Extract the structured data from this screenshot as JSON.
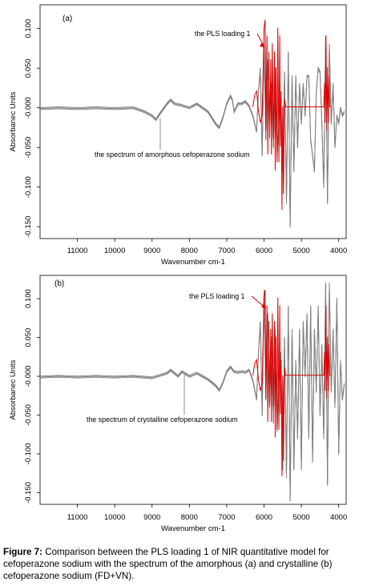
{
  "caption": {
    "label": "Figure 7:",
    "text": "Comparison between the PLS loading 1 of NIR quantitative model for cefoperazone sodium with the spectrum of the amorphous (a) and crystalline (b) cefoperazone sodium (FD+VN)."
  },
  "chart_data": [
    {
      "type": "line",
      "panel_label": "(a)",
      "xlabel": "Wavenumber cm-1",
      "ylabel": "Absorbanec Units",
      "x_reversed": true,
      "xlim": [
        12000,
        3800
      ],
      "ylim": [
        -0.165,
        0.13
      ],
      "x_ticks": [
        "11000",
        "10000",
        "9000",
        "8000",
        "7000",
        "6000",
        "5000",
        "4000"
      ],
      "y_ticks": [
        "0.100",
        "0.050",
        "-0.000",
        "-0.050",
        "-0.100",
        "-0.150"
      ],
      "annotations": [
        "the PLS loading 1",
        "the spectrum of amorphous cefoperazone sodium"
      ],
      "series": [
        {
          "name": "the spectrum of amorphous cefoperazone sodium",
          "color": "#7f7f7f",
          "x": [
            12000,
            11500,
            11000,
            10500,
            10000,
            9500,
            9200,
            9000,
            8900,
            8800,
            8600,
            8500,
            8400,
            8200,
            8000,
            7800,
            7500,
            7300,
            7200,
            7100,
            7000,
            6900,
            6850,
            6800,
            6700,
            6600,
            6500,
            6400,
            6300,
            6200,
            6150,
            6100,
            6050,
            6000,
            5950,
            5900,
            5850,
            5800,
            5750,
            5700,
            5650,
            5600,
            5550,
            5500,
            5450,
            5400,
            5350,
            5300,
            5250,
            5200,
            5150,
            5100,
            5050,
            5000,
            4950,
            4900,
            4850,
            4800,
            4750,
            4700,
            4650,
            4600,
            4550,
            4500,
            4450,
            4400,
            4350,
            4300,
            4250,
            4200,
            4150,
            4100,
            4050,
            4000,
            3950,
            3900,
            3850
          ],
          "values": [
            -0.001,
            0.0,
            -0.001,
            0.0,
            -0.001,
            0.0,
            -0.005,
            -0.01,
            -0.015,
            -0.008,
            0.005,
            0.01,
            0.005,
            0.003,
            0.0,
            0.005,
            -0.005,
            -0.02,
            -0.025,
            -0.012,
            0.005,
            0.015,
            0.01,
            -0.005,
            0.005,
            0.005,
            0.008,
            0.002,
            -0.01,
            -0.03,
            0.02,
            0.05,
            -0.06,
            0.08,
            -0.04,
            0.06,
            -0.02,
            0.03,
            -0.05,
            0.05,
            -0.06,
            -0.02,
            0.01,
            -0.08,
            0.045,
            -0.12,
            0.07,
            -0.15,
            0.04,
            -0.08,
            0.04,
            -0.05,
            0.03,
            -0.02,
            0.03,
            -0.01,
            0.04,
            0.04,
            -0.04,
            -0.06,
            -0.08,
            0.02,
            0.05,
            0.045,
            -0.02,
            -0.1,
            0.09,
            -0.12,
            0.08,
            -0.02,
            0.03,
            -0.05,
            -0.01,
            -0.02,
            0.0,
            -0.01,
            -0.005
          ]
        },
        {
          "name": "the PLS loading 1",
          "color": "#dd0000",
          "x": [
            6300,
            6250,
            6200,
            6150,
            6100,
            6050,
            6000,
            5970,
            5950,
            5920,
            5900,
            5870,
            5850,
            5820,
            5800,
            5780,
            5750,
            5720,
            5700,
            5680,
            5650,
            5630,
            5600,
            5580,
            5560,
            5540,
            5520,
            5500,
            5480,
            5450,
            5420,
            5400,
            5380,
            5350,
            5300,
            5200,
            5100,
            5000,
            4900,
            4800,
            4700,
            4600,
            4500,
            4450,
            4400,
            4380,
            4360,
            4340,
            4320,
            4300,
            4280,
            4260,
            4240,
            4220,
            4200
          ],
          "values": [
            0.0,
            0.015,
            0.02,
            -0.005,
            -0.02,
            -0.01,
            0.1,
            0.11,
            -0.03,
            0.09,
            -0.06,
            0.07,
            -0.04,
            0.06,
            -0.06,
            0.08,
            -0.04,
            0.07,
            -0.08,
            0.05,
            -0.07,
            0.1,
            -0.07,
            0.09,
            -0.05,
            0.02,
            -0.13,
            0.0,
            -0.11,
            0.01,
            0.0,
            0.0,
            0.0,
            0.0,
            0.0,
            0.0,
            0.0,
            0.0,
            0.0,
            0.0,
            0.0,
            0.0,
            0.0,
            0.0,
            0.0,
            0.03,
            -0.02,
            0.09,
            -0.03,
            0.05,
            -0.02,
            0.04,
            0.0,
            0.0,
            0.0
          ]
        }
      ]
    },
    {
      "type": "line",
      "panel_label": "(b)",
      "xlabel": "Wavenumber cm-1",
      "ylabel": "Absorbanec Units",
      "x_reversed": true,
      "xlim": [
        12000,
        3800
      ],
      "ylim": [
        -0.165,
        0.13
      ],
      "x_ticks": [
        "11000",
        "10000",
        "9000",
        "8000",
        "7000",
        "6000",
        "5000",
        "4000"
      ],
      "y_ticks": [
        "0.100",
        "0.050",
        "-0.000",
        "-0.050",
        "-0.100",
        "-0.150"
      ],
      "annotations": [
        "the PLS loading 1",
        "the spectrum of crystalline cefoperazone sodium"
      ],
      "series": [
        {
          "name": "the spectrum of crystalline cefoperazone sodium",
          "color": "#7f7f7f",
          "x": [
            12000,
            11500,
            11000,
            10500,
            10000,
            9500,
            9000,
            8600,
            8500,
            8400,
            8300,
            8200,
            8000,
            7800,
            7500,
            7300,
            7200,
            7100,
            7000,
            6900,
            6800,
            6700,
            6600,
            6500,
            6400,
            6300,
            6200,
            6150,
            6100,
            6050,
            6000,
            5950,
            5900,
            5850,
            5800,
            5750,
            5700,
            5650,
            5600,
            5550,
            5500,
            5450,
            5400,
            5350,
            5300,
            5250,
            5200,
            5150,
            5100,
            5050,
            5000,
            4950,
            4900,
            4850,
            4800,
            4750,
            4700,
            4650,
            4600,
            4550,
            4500,
            4450,
            4400,
            4350,
            4300,
            4250,
            4200,
            4150,
            4100,
            4050,
            4000,
            3950,
            3900,
            3850
          ],
          "values": [
            -0.001,
            0.0,
            -0.001,
            0.0,
            -0.001,
            0.0,
            -0.002,
            0.004,
            0.008,
            0.004,
            0.0,
            0.006,
            0.0,
            0.004,
            -0.004,
            -0.012,
            -0.018,
            -0.008,
            0.006,
            0.012,
            0.006,
            0.005,
            0.006,
            0.005,
            0.008,
            -0.005,
            -0.03,
            0.03,
            0.07,
            -0.05,
            0.11,
            -0.03,
            0.08,
            -0.04,
            0.05,
            -0.06,
            0.06,
            -0.07,
            -0.01,
            0.03,
            -0.12,
            0.05,
            -0.13,
            0.09,
            -0.16,
            0.06,
            -0.12,
            0.02,
            -0.08,
            0.06,
            -0.12,
            0.07,
            0.0,
            0.08,
            -0.08,
            0.09,
            -0.11,
            0.06,
            -0.02,
            0.09,
            -0.05,
            0.04,
            -0.08,
            0.12,
            -0.14,
            0.12,
            -0.02,
            0.06,
            -0.04,
            0.1,
            -0.1,
            0.02,
            -0.03,
            -0.01
          ]
        },
        {
          "name": "the PLS loading 1",
          "color": "#dd0000",
          "x": [
            6300,
            6250,
            6200,
            6150,
            6100,
            6050,
            6000,
            5970,
            5950,
            5920,
            5900,
            5870,
            5850,
            5820,
            5800,
            5780,
            5750,
            5720,
            5700,
            5680,
            5650,
            5630,
            5600,
            5580,
            5560,
            5540,
            5520,
            5500,
            5480,
            5450,
            5420,
            5400,
            5380,
            5350,
            5300,
            5200,
            5100,
            5000,
            4900,
            4800,
            4700,
            4600,
            4500,
            4450,
            4400,
            4380,
            4360,
            4340,
            4320,
            4300,
            4280,
            4260,
            4240,
            4220,
            4200
          ],
          "values": [
            0.0,
            0.015,
            0.02,
            -0.005,
            -0.02,
            -0.01,
            0.1,
            0.11,
            -0.03,
            0.09,
            -0.06,
            0.07,
            -0.04,
            0.06,
            -0.06,
            0.08,
            -0.04,
            0.07,
            -0.08,
            0.05,
            -0.07,
            0.1,
            -0.07,
            0.09,
            -0.05,
            0.02,
            -0.13,
            0.0,
            -0.11,
            0.01,
            0.0,
            0.0,
            0.0,
            0.0,
            0.0,
            0.0,
            0.0,
            0.0,
            0.0,
            0.0,
            0.0,
            0.0,
            0.0,
            0.0,
            0.0,
            0.03,
            -0.02,
            0.09,
            -0.03,
            0.05,
            -0.02,
            0.04,
            0.0,
            0.0,
            0.0
          ]
        }
      ]
    }
  ]
}
